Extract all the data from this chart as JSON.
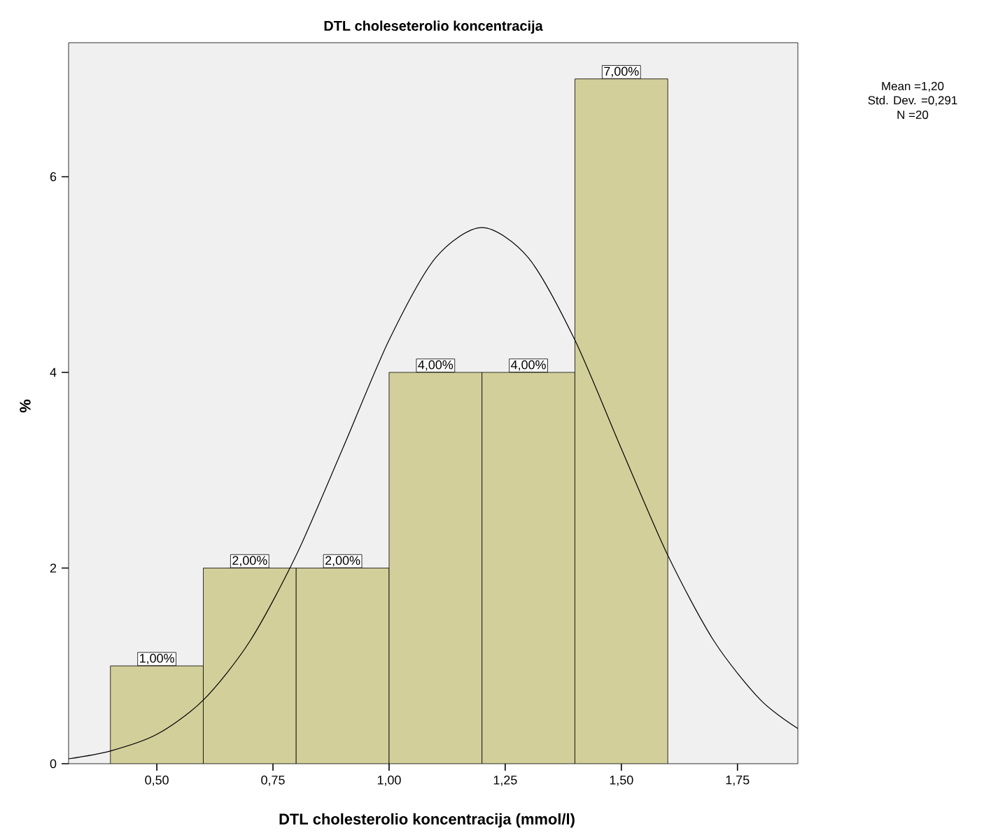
{
  "chart_data": {
    "type": "histogram",
    "title": "DTL choleseterolio koncentracija",
    "xlabel": "DTL cholesterolio koncentracija (mmol/l)",
    "ylabel": "%",
    "bins": [
      0.4,
      0.6,
      0.8,
      1.0,
      1.2,
      1.4,
      1.6
    ],
    "values": [
      1,
      2,
      2,
      4,
      4,
      7
    ],
    "color": "#d3cf9a",
    "value_labels": [
      "1,00%",
      "2,00%",
      "2,00%",
      "4,00%",
      "4,00%",
      "7,00%"
    ],
    "series": [
      {
        "type": "line",
        "color": "#000000",
        "x": [
          0.31,
          0.4,
          0.5,
          0.6,
          0.7,
          0.8,
          0.9,
          1.0,
          1.1,
          1.2,
          1.3,
          1.4,
          1.5,
          1.6,
          1.7,
          1.8,
          1.88
        ],
        "values": [
          0.05,
          0.13,
          0.3,
          0.65,
          1.25,
          2.13,
          3.22,
          4.33,
          5.17,
          5.48,
          5.17,
          4.33,
          3.22,
          2.13,
          1.25,
          0.65,
          0.36
        ]
      }
    ],
    "xlim": [
      0.31,
      1.88
    ],
    "ylim": [
      0,
      7.37
    ],
    "xticks": [
      {
        "value": 0.5,
        "label": "0,50"
      },
      {
        "value": 0.75,
        "label": "0,75"
      },
      {
        "value": 1.0,
        "label": "1,00"
      },
      {
        "value": 1.25,
        "label": "1,25"
      },
      {
        "value": 1.5,
        "label": "1,50"
      },
      {
        "value": 1.75,
        "label": "1,75"
      }
    ],
    "yticks": [
      0,
      2,
      4,
      6
    ],
    "grid": false,
    "annotations": [
      "Mean =1,20",
      "Std. Dev. =0,291",
      "N =20"
    ]
  }
}
